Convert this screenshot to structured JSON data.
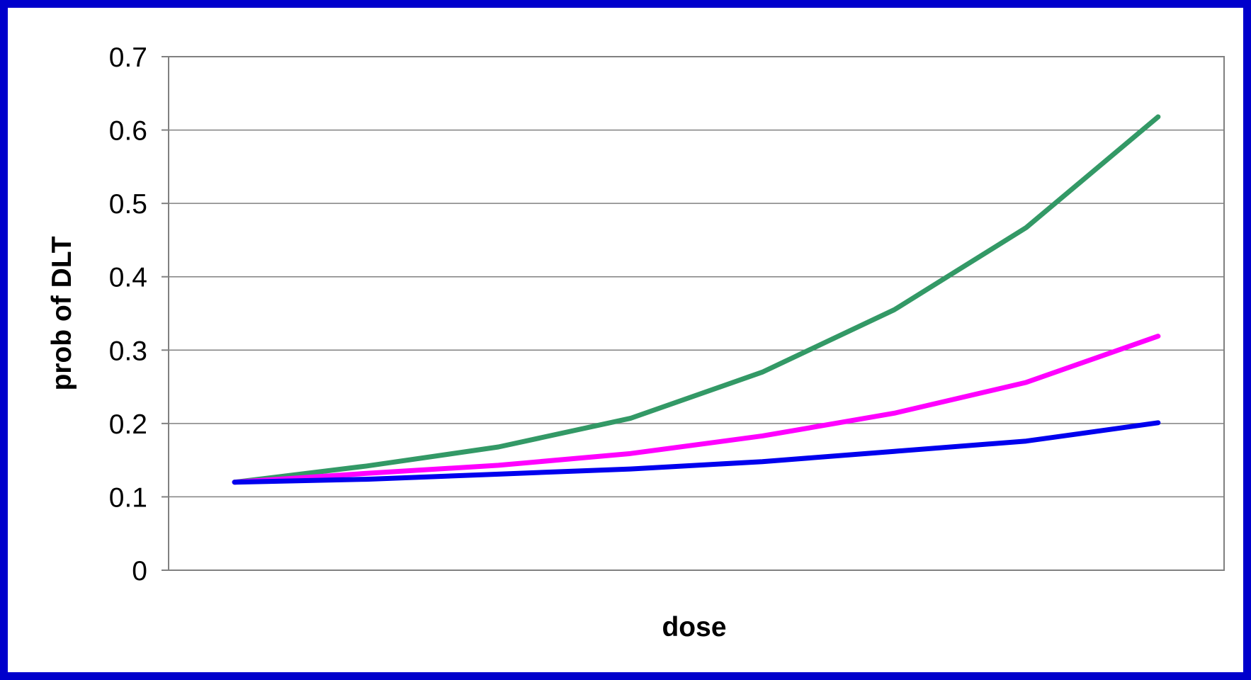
{
  "chart_data": {
    "type": "line",
    "title": "",
    "xlabel": "dose",
    "ylabel": "prob of DLT",
    "ylim": [
      0,
      0.7
    ],
    "yticks": [
      "0",
      "0.1",
      "0.2",
      "0.3",
      "0.4",
      "0.5",
      "0.6",
      "0.7"
    ],
    "x": [
      1,
      2,
      3,
      4,
      5,
      6,
      7,
      8
    ],
    "grid": true,
    "legend": "none",
    "series": [
      {
        "color": "#339966",
        "values": [
          0.12,
          0.142,
          0.168,
          0.207,
          0.27,
          0.355,
          0.467,
          0.618
        ]
      },
      {
        "color": "#ff00ff",
        "values": [
          0.12,
          0.132,
          0.143,
          0.159,
          0.183,
          0.214,
          0.256,
          0.319
        ]
      },
      {
        "color": "#0000ee",
        "values": [
          0.12,
          0.124,
          0.131,
          0.138,
          0.148,
          0.162,
          0.176,
          0.201
        ]
      }
    ]
  }
}
